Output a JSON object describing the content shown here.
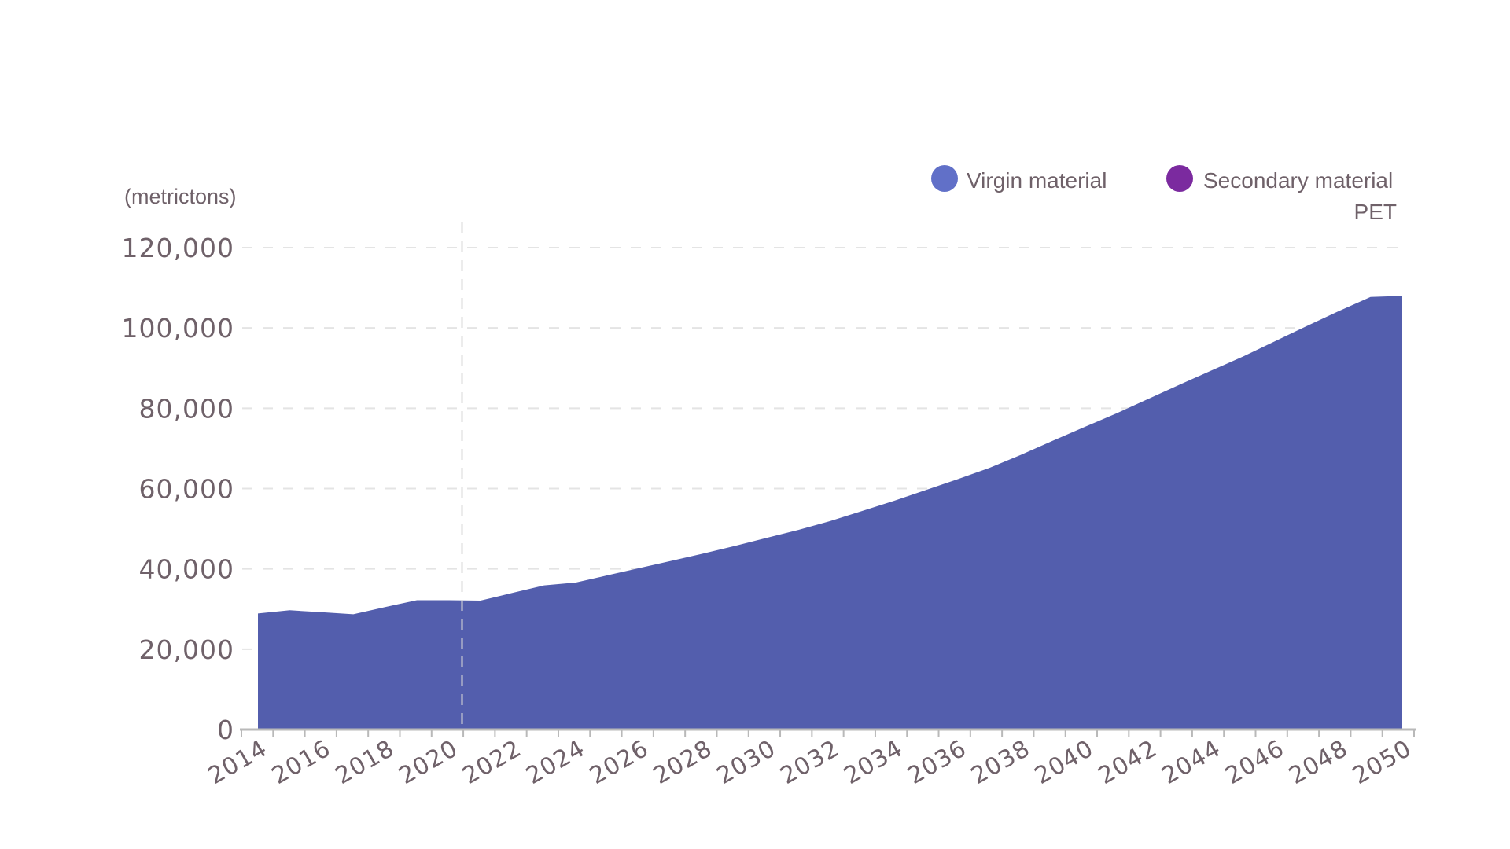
{
  "chart_data": {
    "type": "area",
    "subtitle": "PET",
    "unit_label": "(metrictons)",
    "x": [
      2014,
      2015,
      2016,
      2017,
      2018,
      2019,
      2020,
      2021,
      2022,
      2023,
      2024,
      2025,
      2026,
      2027,
      2028,
      2029,
      2030,
      2031,
      2032,
      2033,
      2034,
      2035,
      2036,
      2037,
      2038,
      2039,
      2040,
      2041,
      2042,
      2043,
      2044,
      2045,
      2046,
      2047,
      2048,
      2049,
      2050
    ],
    "x_ticks": [
      2014,
      2016,
      2018,
      2020,
      2022,
      2024,
      2026,
      2028,
      2030,
      2032,
      2034,
      2036,
      2038,
      2040,
      2042,
      2044,
      2046,
      2048,
      2050
    ],
    "y_ticks": [
      0,
      20000,
      40000,
      60000,
      80000,
      100000,
      120000
    ],
    "y_tick_labels": [
      "0",
      "20,000",
      "40,000",
      "60,000",
      "80,000",
      "100,000",
      "120,000"
    ],
    "ylim": [
      0,
      120000
    ],
    "xlim": [
      2014,
      2050
    ],
    "forecast_marker_x": 2020,
    "grid": "horizontal dashed",
    "legend_position": "top-right",
    "series": [
      {
        "name": "Virgin material",
        "color": "#6170c8",
        "values": [
          28900,
          29700,
          29200,
          28700,
          30500,
          32200,
          32200,
          32100,
          34000,
          35900,
          36600,
          38400,
          40200,
          42000,
          43800,
          45700,
          47700,
          49700,
          51900,
          54400,
          56900,
          59600,
          62300,
          65100,
          68400,
          71900,
          75300,
          78700,
          82300,
          85900,
          89400,
          92900,
          96700,
          100500,
          104200,
          107700,
          108000
        ]
      },
      {
        "name": "Secondary material",
        "color": "#7b2a9f",
        "values": [
          0,
          0,
          0,
          0,
          0,
          0,
          0,
          0,
          0,
          0,
          0,
          0,
          0,
          0,
          0,
          0,
          0,
          0,
          0,
          0,
          0,
          0,
          0,
          0,
          0,
          0,
          0,
          0,
          0,
          0,
          0,
          0,
          0,
          0,
          0,
          0,
          0
        ]
      }
    ],
    "area_fill_color": "#535ead"
  }
}
